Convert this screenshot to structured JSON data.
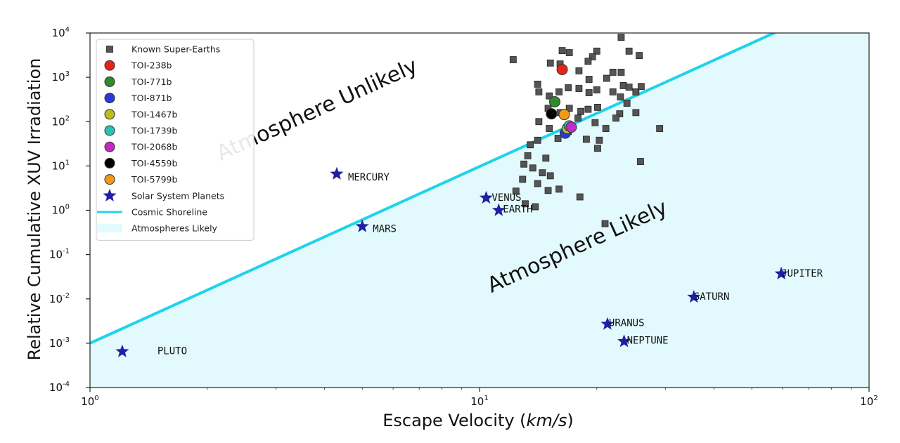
{
  "chart_data": {
    "type": "scatter",
    "title": "",
    "xlabel": "Escape Velocity (km/s)",
    "ylabel": "Relative Cumulative XUV Irradiation",
    "xscale": "log",
    "yscale": "log",
    "xlim": [
      1,
      100
    ],
    "ylim": [
      0.0001,
      10000
    ],
    "x_ticks": [
      {
        "value": 1,
        "base": "10",
        "exp": "0"
      },
      {
        "value": 10,
        "base": "10",
        "exp": "1"
      },
      {
        "value": 100,
        "base": "10",
        "exp": "2"
      }
    ],
    "y_ticks": [
      {
        "value": 0.0001,
        "base": "10",
        "exp": "-4"
      },
      {
        "value": 0.001,
        "base": "10",
        "exp": "-3"
      },
      {
        "value": 0.01,
        "base": "10",
        "exp": "-2"
      },
      {
        "value": 0.1,
        "base": "10",
        "exp": "-1"
      },
      {
        "value": 1,
        "base": "10",
        "exp": "0"
      },
      {
        "value": 10,
        "base": "10",
        "exp": "1"
      },
      {
        "value": 100,
        "base": "10",
        "exp": "2"
      },
      {
        "value": 1000,
        "base": "10",
        "exp": "3"
      },
      {
        "value": 10000,
        "base": "10",
        "exp": "4"
      }
    ],
    "legend_position": "top-left",
    "shoreline": {
      "name": "Cosmic Shoreline",
      "color": "#1fd3ec",
      "points": [
        [
          1,
          0.001
        ],
        [
          57,
          10000
        ]
      ]
    },
    "region_likely": {
      "name": "Atmospheres Likely",
      "color": "#e2fafd"
    },
    "region_labels": {
      "unlikely": "Atmosphere Unlikely",
      "likely": "Atmosphere Likely"
    },
    "super_earths": {
      "name": "Known Super-Earths",
      "color": "#555555",
      "points": [
        [
          12.2,
          2500
        ],
        [
          15.2,
          2100
        ],
        [
          16.1,
          2000
        ],
        [
          17.0,
          3600
        ],
        [
          16.3,
          4000
        ],
        [
          20.0,
          3900
        ],
        [
          19.5,
          2900
        ],
        [
          19.0,
          2300
        ],
        [
          23.1,
          8000
        ],
        [
          24.2,
          3900
        ],
        [
          25.7,
          3100
        ],
        [
          18.0,
          1400
        ],
        [
          19.1,
          900
        ],
        [
          21.2,
          950
        ],
        [
          22.0,
          1300
        ],
        [
          23.1,
          1300
        ],
        [
          23.4,
          650
        ],
        [
          24.2,
          600
        ],
        [
          25.2,
          470
        ],
        [
          26.0,
          620
        ],
        [
          14.1,
          700
        ],
        [
          14.2,
          470
        ],
        [
          15.1,
          380
        ],
        [
          16.0,
          470
        ],
        [
          16.9,
          580
        ],
        [
          18.0,
          560
        ],
        [
          19.1,
          450
        ],
        [
          20.0,
          520
        ],
        [
          22.0,
          470
        ],
        [
          23.0,
          360
        ],
        [
          23.9,
          260
        ],
        [
          15.0,
          200
        ],
        [
          16.1,
          160
        ],
        [
          17.0,
          200
        ],
        [
          18.2,
          170
        ],
        [
          19.0,
          190
        ],
        [
          20.1,
          210
        ],
        [
          22.9,
          150
        ],
        [
          25.2,
          160
        ],
        [
          17.9,
          120
        ],
        [
          19.8,
          95
        ],
        [
          14.2,
          100
        ],
        [
          15.1,
          70
        ],
        [
          16.9,
          60
        ],
        [
          21.1,
          70
        ],
        [
          22.4,
          120
        ],
        [
          29.0,
          70
        ],
        [
          14.1,
          38
        ],
        [
          15.9,
          42
        ],
        [
          18.8,
          40
        ],
        [
          20.3,
          38
        ],
        [
          13.5,
          30
        ],
        [
          13.3,
          17
        ],
        [
          14.8,
          15
        ],
        [
          20.1,
          25
        ],
        [
          13.0,
          11
        ],
        [
          13.7,
          9
        ],
        [
          15.2,
          6
        ],
        [
          14.5,
          7
        ],
        [
          12.9,
          5
        ],
        [
          14.1,
          4
        ],
        [
          16.0,
          3
        ],
        [
          12.4,
          2.7
        ],
        [
          15.0,
          2.8
        ],
        [
          18.1,
          2.0
        ],
        [
          13.1,
          1.4
        ],
        [
          13.9,
          1.2
        ],
        [
          25.9,
          12.6
        ],
        [
          21.0,
          0.5
        ]
      ]
    },
    "tois": [
      {
        "name": "TOI-238b",
        "x": 16.3,
        "y": 1500,
        "color": "#e8231a"
      },
      {
        "name": "TOI-771b",
        "x": 15.6,
        "y": 280,
        "color": "#2f8a2a"
      },
      {
        "name": "TOI-871b",
        "x": 16.6,
        "y": 55,
        "color": "#2a38d8"
      },
      {
        "name": "TOI-1467b",
        "x": 16.8,
        "y": 70,
        "color": "#bbbb22"
      },
      {
        "name": "TOI-1739b",
        "x": 17.0,
        "y": 80,
        "color": "#27c2b3"
      },
      {
        "name": "TOI-2068b",
        "x": 17.2,
        "y": 75,
        "color": "#c22ac4"
      },
      {
        "name": "TOI-4559b",
        "x": 15.3,
        "y": 150,
        "color": "#000000"
      },
      {
        "name": "TOI-5799b",
        "x": 16.5,
        "y": 145,
        "color": "#f29a18"
      }
    ],
    "planets": {
      "name": "Solar System Planets",
      "color": "#1f1fa6",
      "points": [
        {
          "name": "MERCURY",
          "x": 4.3,
          "y": 6.6
        },
        {
          "name": "VENUS",
          "x": 10.4,
          "y": 1.9
        },
        {
          "name": "EARTH",
          "x": 11.2,
          "y": 1.0
        },
        {
          "name": "MARS",
          "x": 5.0,
          "y": 0.43
        },
        {
          "name": "JUPITER",
          "x": 59.5,
          "y": 0.037
        },
        {
          "name": "SATURN",
          "x": 35.5,
          "y": 0.011
        },
        {
          "name": "URANUS",
          "x": 21.3,
          "y": 0.0027
        },
        {
          "name": "NEPTUNE",
          "x": 23.5,
          "y": 0.0011
        },
        {
          "name": "PLUTO",
          "x": 1.21,
          "y": 0.00065
        }
      ]
    },
    "legend": [
      {
        "key": "super-earths",
        "label": "Known Super-Earths"
      },
      {
        "key": "toi-238b",
        "label": "TOI-238b"
      },
      {
        "key": "toi-771b",
        "label": "TOI-771b"
      },
      {
        "key": "toi-871b",
        "label": "TOI-871b"
      },
      {
        "key": "toi-1467b",
        "label": "TOI-1467b"
      },
      {
        "key": "toi-1739b",
        "label": "TOI-1739b"
      },
      {
        "key": "toi-2068b",
        "label": "TOI-2068b"
      },
      {
        "key": "toi-4559b",
        "label": "TOI-4559b"
      },
      {
        "key": "toi-5799b",
        "label": "TOI-5799b"
      },
      {
        "key": "planets",
        "label": "Solar System Planets"
      },
      {
        "key": "shoreline",
        "label": "Cosmic Shoreline"
      },
      {
        "key": "likely",
        "label": "Atmospheres Likely"
      }
    ]
  }
}
